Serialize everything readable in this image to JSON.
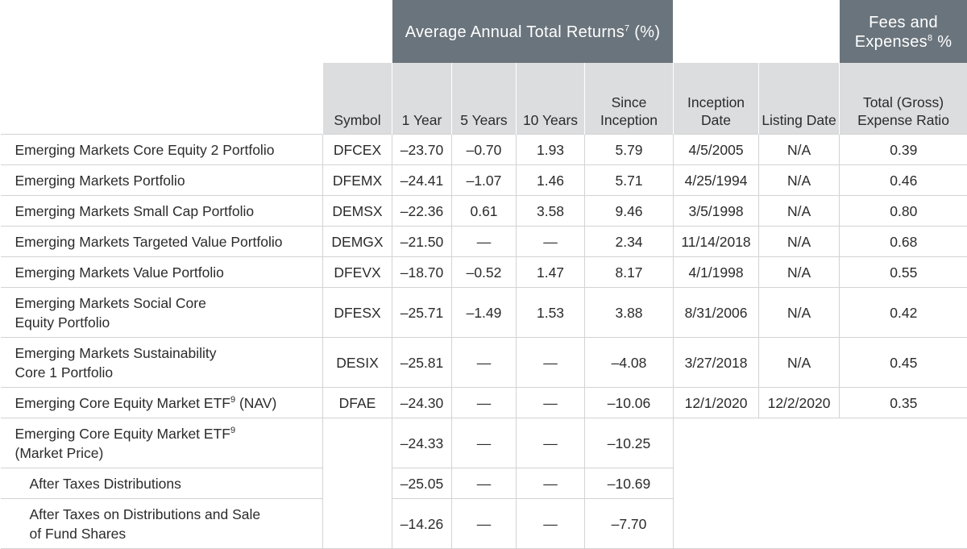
{
  "header": {
    "avg_returns": "Average Annual Total Returns",
    "avg_returns_sup": "7",
    "avg_returns_unit": "(%)",
    "fees": "Fees and Expenses",
    "fees_sup": "8",
    "fees_unit": "%"
  },
  "columns": {
    "symbol": "Symbol",
    "y1": "1 Year",
    "y5": "5 Years",
    "y10": "10 Years",
    "since": "Since Inception",
    "inception_date": "Inception Date",
    "listing_date": "Listing Date",
    "expense": "Total (Gross) Expense Ratio"
  },
  "rows": [
    {
      "name": "Emerging Markets Core Equity 2 Portfolio",
      "symbol": "DFCEX",
      "y1": "–23.70",
      "y5": "–0.70",
      "y10": "1.93",
      "since": "5.79",
      "inception": "4/5/2005",
      "listing": "N/A",
      "expense": "0.39"
    },
    {
      "name": "Emerging Markets Portfolio",
      "symbol": "DFEMX",
      "y1": "–24.41",
      "y5": "–1.07",
      "y10": "1.46",
      "since": "5.71",
      "inception": "4/25/1994",
      "listing": "N/A",
      "expense": "0.46"
    },
    {
      "name": "Emerging Markets Small Cap Portfolio",
      "symbol": "DEMSX",
      "y1": "–22.36",
      "y5": "0.61",
      "y10": "3.58",
      "since": "9.46",
      "inception": "3/5/1998",
      "listing": "N/A",
      "expense": "0.80"
    },
    {
      "name": "Emerging Markets Targeted Value Portfolio",
      "symbol": "DEMGX",
      "y1": "–21.50",
      "y5": "—",
      "y10": "—",
      "since": "2.34",
      "inception": "11/14/2018",
      "listing": "N/A",
      "expense": "0.68"
    },
    {
      "name": "Emerging Markets Value Portfolio",
      "symbol": "DFEVX",
      "y1": "–18.70",
      "y5": "–0.52",
      "y10": "1.47",
      "since": "8.17",
      "inception": "4/1/1998",
      "listing": "N/A",
      "expense": "0.55"
    },
    {
      "name_line1": "Emerging Markets Social Core",
      "name_line2": "Equity Portfolio",
      "symbol": "DFESX",
      "y1": "–25.71",
      "y5": "–1.49",
      "y10": "1.53",
      "since": "3.88",
      "inception": "8/31/2006",
      "listing": "N/A",
      "expense": "0.42"
    },
    {
      "name_line1": "Emerging Markets Sustainability",
      "name_line2": "Core 1 Portfolio",
      "symbol": "DESIX",
      "y1": "–25.81",
      "y5": "—",
      "y10": "—",
      "since": "–4.08",
      "inception": "3/27/2018",
      "listing": "N/A",
      "expense": "0.45"
    },
    {
      "name": "Emerging Core Equity Market ETF",
      "name_sup": "9",
      "name_suffix": "(NAV)",
      "symbol": "DFAE",
      "y1": "–24.30",
      "y5": "—",
      "y10": "—",
      "since": "–10.06",
      "inception": "12/1/2020",
      "listing": "12/2/2020",
      "expense": "0.35"
    },
    {
      "name_line1": "Emerging Core Equity Market ETF",
      "name_sup": "9",
      "name_line2": "(Market Price)",
      "y1": "–24.33",
      "y5": "—",
      "y10": "—",
      "since": "–10.25"
    },
    {
      "name": "After Taxes Distributions",
      "y1": "–25.05",
      "y5": "—",
      "y10": "—",
      "since": "–10.69"
    },
    {
      "name_line1": "After Taxes on Distributions and Sale",
      "name_line2": "of Fund Shares",
      "y1": "–14.26",
      "y5": "—",
      "y10": "—",
      "since": "–7.70"
    }
  ]
}
